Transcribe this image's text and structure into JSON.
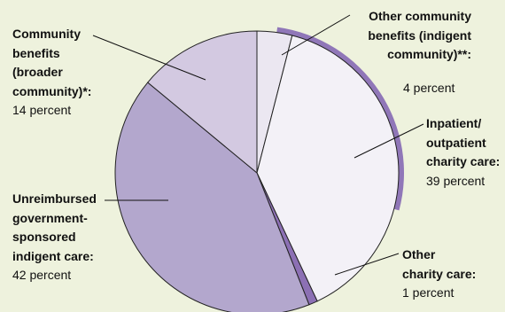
{
  "chart_data": {
    "type": "pie",
    "unit": "percent",
    "slices": [
      {
        "name": "Other community benefits (indigent community)**:",
        "value": 4,
        "value_text": "4 percent",
        "color": "#ebe7f1"
      },
      {
        "name": "Inpatient/ outpatient charity care:",
        "value": 39,
        "value_text": "39 percent",
        "color": "#f3f1f7"
      },
      {
        "name": "Other charity care:",
        "value": 1,
        "value_text": "1 percent",
        "color": "#8c70b4"
      },
      {
        "name": "Unreimbursed government-sponsored indigent care:",
        "value": 42,
        "value_text": "42 percent",
        "color": "#b3a7cd"
      },
      {
        "name": "Community benefits (broader community)*:",
        "value": 14,
        "value_text": "14 percent",
        "color": "#d3c9e1"
      }
    ],
    "highlight_color": "#9077b8",
    "edge_color": "#222222"
  },
  "labels": {
    "other_community": {
      "line1": "Other community",
      "line2": "benefits (indigent",
      "line3": "community)**:",
      "value": "4 percent"
    },
    "inpatient": {
      "line1": "Inpatient/",
      "line2": "outpatient",
      "line3": "charity care:",
      "value": "39 percent"
    },
    "other_charity": {
      "line1": "Other",
      "line2": "charity care:",
      "value": "1 percent"
    },
    "unreimbursed": {
      "line1": "Unreimbursed",
      "line2": "government-",
      "line3": "sponsored",
      "line4": "indigent care:",
      "value": "42 percent"
    },
    "community": {
      "line1": "Community",
      "line2": "benefits",
      "line3": "(broader",
      "line4": "community)*:",
      "value": "14 percent"
    }
  }
}
